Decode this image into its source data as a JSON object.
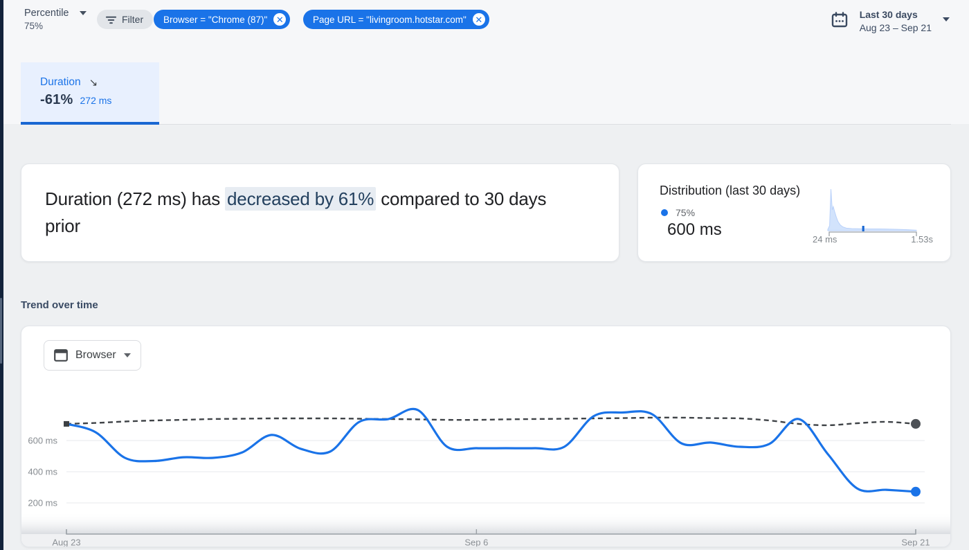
{
  "colors": {
    "accent_blue": "#1a73e8",
    "tab_indicator_blue": "#1967d2",
    "tab_bg": "#e8f0fe",
    "chip_bg": "#1a73e8",
    "highlight_bg": "#e7ecf2",
    "highlight_text": "#23405e",
    "series_current": "#1a73e8",
    "series_previous": "#3f4347",
    "distribution_fill": "#d2e3fc",
    "grid_line": "#e7e9ec",
    "axis_line": "#9aa0a6",
    "muted_text": "#80868b",
    "dark_text": "#202124",
    "slate_text": "#3b4a61",
    "page_bg": "#eef0f2",
    "card_bg": "#ffffff"
  },
  "header": {
    "percentile": {
      "label": "Percentile",
      "value": "75%"
    },
    "filter_button": {
      "label": "Filter"
    },
    "chips": [
      {
        "label": "Browser = \"Chrome (87)\""
      },
      {
        "label": "Page URL = \"livingroom.hotstar.com\""
      }
    ],
    "date_range": {
      "title": "Last 30 days",
      "range": "Aug 23 – Sep 21"
    }
  },
  "metric_tab": {
    "name": "Duration",
    "trend_arrow": "↘",
    "delta": "-61%",
    "value": "272 ms"
  },
  "insight_card": {
    "text_prefix": "Duration (272 ms) has ",
    "text_highlight": "decreased by 61%",
    "text_suffix": " compared to 30 days prior"
  },
  "distribution_card": {
    "title": "Distribution (last 30 days)",
    "legend_percentile": "75%",
    "percentile_value": "600 ms",
    "axis_min": "24 ms",
    "axis_max": "1.53s"
  },
  "trend_section": {
    "title": "Trend over time",
    "breakdown_button": {
      "label": "Browser"
    }
  },
  "chart_data": [
    {
      "id": "trend-over-time",
      "type": "line",
      "title": "Trend over time",
      "ylabel": "Duration",
      "ylim": [
        0,
        900
      ],
      "grid": true,
      "legend_position": "none",
      "x_axis": {
        "tick_labels": [
          "Aug 23",
          "Sep 6",
          "Sep 21"
        ],
        "tick_days": [
          0,
          14,
          29
        ],
        "total_days": 29
      },
      "y_axis": {
        "tick_labels": [
          "600 ms",
          "400 ms",
          "200 ms"
        ],
        "tick_values": [
          600,
          400,
          200
        ]
      },
      "series": [
        {
          "name": "Duration current 30 days (Aug 23 – Sep 21)",
          "style": "solid",
          "color": "#1a73e8",
          "endpoint_value_ms": 272,
          "values_ms": [
            707,
            653,
            489,
            469,
            493,
            489,
            524,
            636,
            547,
            529,
            720,
            738,
            796,
            560,
            551,
            551,
            551,
            560,
            756,
            780,
            769,
            582,
            587,
            560,
            578,
            738,
            513,
            293,
            284,
            272
          ]
        },
        {
          "name": "Duration previous 30 days",
          "style": "dashed",
          "color": "#3f4347",
          "endpoint_value_ms": 707,
          "values_ms": [
            707,
            713,
            722,
            729,
            733,
            738,
            740,
            742,
            742,
            742,
            740,
            738,
            736,
            733,
            733,
            736,
            738,
            740,
            742,
            744,
            747,
            747,
            744,
            742,
            729,
            707,
            698,
            711,
            720,
            707
          ]
        }
      ]
    },
    {
      "id": "duration-distribution",
      "type": "area",
      "title": "Distribution (last 30 days)",
      "x_min_label": "24 ms",
      "x_max_label": "1.53s",
      "x_scale": "log",
      "percentile": {
        "label": "75%",
        "value_ms": 600
      },
      "marker_fraction": 0.4,
      "curve_points": [
        [
          0,
          0.03
        ],
        [
          0.02,
          0.12
        ],
        [
          0.035,
          1.0
        ],
        [
          0.05,
          0.5
        ],
        [
          0.062,
          0.58
        ],
        [
          0.078,
          0.45
        ],
        [
          0.095,
          0.33
        ],
        [
          0.115,
          0.22
        ],
        [
          0.14,
          0.14
        ],
        [
          0.17,
          0.09
        ],
        [
          0.21,
          0.06
        ],
        [
          0.27,
          0.05
        ],
        [
          0.36,
          0.045
        ],
        [
          0.5,
          0.042
        ],
        [
          0.65,
          0.04
        ],
        [
          0.8,
          0.032
        ],
        [
          0.92,
          0.022
        ],
        [
          1.0,
          0.012
        ]
      ]
    }
  ]
}
